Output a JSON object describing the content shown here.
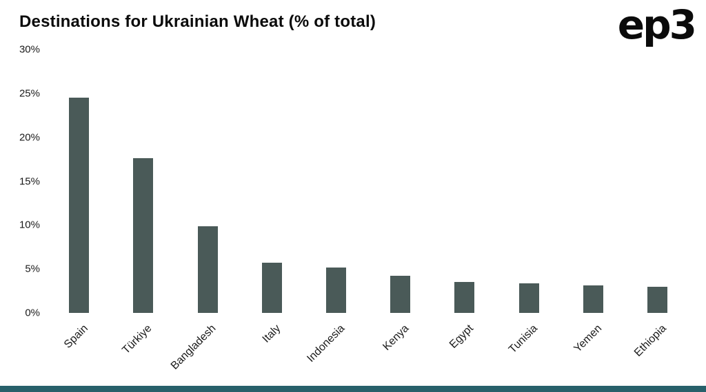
{
  "header": {
    "title": "Destinations for Ukrainian Wheat (% of total)",
    "logo_text": "ep3"
  },
  "colors": {
    "bar": "#4a5a58",
    "footer_strip": "#27606a",
    "title_text": "#0b0b0b",
    "tick_text": "#1a1a1a",
    "background": "#ffffff"
  },
  "chart_data": {
    "type": "bar",
    "title": "Destinations for Ukrainian Wheat (% of total)",
    "categories": [
      "Spain",
      "Türkiye",
      "Bangladesh",
      "Italy",
      "Indonesia",
      "Kenya",
      "Egypt",
      "Tunisia",
      "Yemen",
      "Ethiopia"
    ],
    "values": [
      24.5,
      17.6,
      9.9,
      5.7,
      5.2,
      4.2,
      3.5,
      3.4,
      3.1,
      3.0
    ],
    "xlabel": "",
    "ylabel": "",
    "ylim": [
      0,
      30
    ],
    "yticks": [
      0,
      5,
      10,
      15,
      20,
      25,
      30
    ],
    "ytick_labels": [
      "0%",
      "5%",
      "10%",
      "15%",
      "20%",
      "25%",
      "30%"
    ],
    "grid": false,
    "legend": "none",
    "bar_color": "#4a5a58"
  }
}
